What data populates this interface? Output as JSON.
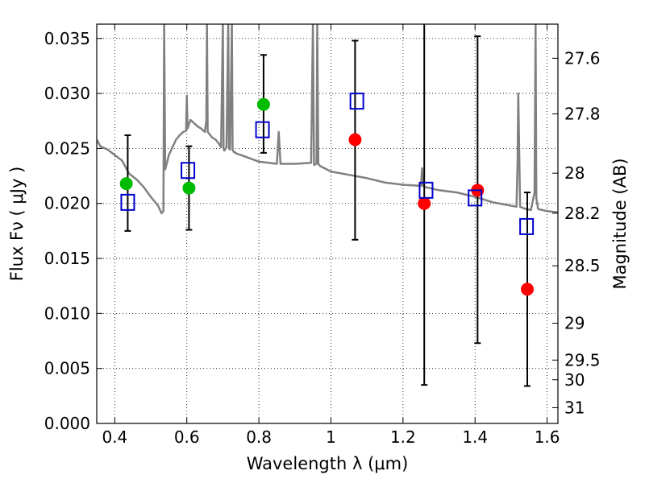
{
  "chart_data": {
    "type": "scatter",
    "title": "",
    "xlabel": "Wavelength  λ (μm)",
    "ylabel": "Flux  Fν  ( μJy )",
    "y2label": "Magnitude (AB)",
    "xlim": [
      0.35,
      1.63
    ],
    "ylim": [
      0.0,
      0.0363
    ],
    "grid": true,
    "x_ticks": [
      0.4,
      0.6,
      0.8,
      1.0,
      1.2,
      1.4,
      1.6
    ],
    "x_tick_labels": [
      "0.4",
      "0.6",
      "0.8",
      "1",
      "1.2",
      "1.4",
      "1.6"
    ],
    "y_ticks": [
      0.0,
      0.005,
      0.01,
      0.015,
      0.02,
      0.025,
      0.03,
      0.035
    ],
    "y_tick_labels": [
      "0.000",
      "0.005",
      "0.010",
      "0.015",
      "0.020",
      "0.025",
      "0.030",
      "0.035"
    ],
    "mag_ticks": [
      {
        "label": "27.6",
        "flux": 0.0332
      },
      {
        "label": "27.8",
        "flux": 0.02814
      },
      {
        "label": "28",
        "flux": 0.02275
      },
      {
        "label": "28.2",
        "flux": 0.01911
      },
      {
        "label": "28.5",
        "flux": 0.01433
      },
      {
        "label": "29",
        "flux": 0.00911
      },
      {
        "label": "29.5",
        "flux": 0.00576
      },
      {
        "label": "30",
        "flux": 0.00397
      },
      {
        "label": "31",
        "flux": 0.00143
      }
    ],
    "series": [
      {
        "name": "model spectrum",
        "style": "line",
        "color": "#808080",
        "x": [
          0.35,
          0.36,
          0.38,
          0.4,
          0.42,
          0.44,
          0.46,
          0.48,
          0.5,
          0.52,
          0.53,
          0.535,
          0.537,
          0.54,
          0.545,
          0.55,
          0.56,
          0.57,
          0.58,
          0.59,
          0.598,
          0.6,
          0.602,
          0.61,
          0.62,
          0.63,
          0.64,
          0.65,
          0.654,
          0.656,
          0.658,
          0.67,
          0.68,
          0.69,
          0.695,
          0.7,
          0.702,
          0.704,
          0.71,
          0.715,
          0.717,
          0.72,
          0.725,
          0.727,
          0.73,
          0.74,
          0.75,
          0.8,
          0.85,
          0.855,
          0.86,
          0.9,
          0.945,
          0.95,
          0.953,
          0.96,
          0.962,
          0.965,
          0.97,
          1.0,
          1.05,
          1.1,
          1.15,
          1.2,
          1.25,
          1.253,
          1.256,
          1.26,
          1.3,
          1.35,
          1.4,
          1.45,
          1.5,
          1.515,
          1.518,
          1.52,
          1.523,
          1.525,
          1.54,
          1.555,
          1.565,
          1.568,
          1.57,
          1.575,
          1.6,
          1.63
        ],
        "y": [
          0.0258,
          0.0252,
          0.0249,
          0.0244,
          0.0239,
          0.0227,
          0.0222,
          0.0215,
          0.0206,
          0.0198,
          0.0191,
          0.0193,
          0.0363,
          0.0231,
          0.0237,
          0.0244,
          0.0251,
          0.0258,
          0.0262,
          0.0265,
          0.0266,
          0.0298,
          0.0268,
          0.0276,
          0.0273,
          0.027,
          0.0268,
          0.0265,
          0.0275,
          0.0363,
          0.0265,
          0.026,
          0.0258,
          0.0254,
          0.0251,
          0.0363,
          0.025,
          0.0248,
          0.0251,
          0.0363,
          0.025,
          0.0249,
          0.0363,
          0.0249,
          0.0247,
          0.0245,
          0.0244,
          0.0238,
          0.0236,
          0.0265,
          0.0236,
          0.0236,
          0.0237,
          0.0363,
          0.0235,
          0.0236,
          0.0363,
          0.0236,
          0.0234,
          0.0229,
          0.0226,
          0.0223,
          0.0219,
          0.0217,
          0.0216,
          0.0232,
          0.0216,
          0.0215,
          0.0212,
          0.021,
          0.0206,
          0.0201,
          0.0198,
          0.0197,
          0.0238,
          0.03,
          0.0238,
          0.0197,
          0.0195,
          0.0194,
          0.021,
          0.0363,
          0.0205,
          0.0195,
          0.0193,
          0.0192
        ]
      },
      {
        "name": "photometry green",
        "style": "circle",
        "color": "#00bb00",
        "x": [
          0.432,
          0.606,
          0.813
        ],
        "y": [
          0.0218,
          0.0214,
          0.029
        ]
      },
      {
        "name": "photometry red",
        "style": "circle",
        "color": "#ff0000",
        "x": [
          1.067,
          1.259,
          1.407,
          1.545
        ],
        "y": [
          0.0258,
          0.02,
          0.0212,
          0.0122
        ]
      },
      {
        "name": "model photometry",
        "style": "square",
        "color": "#0000cc",
        "x": [
          0.436,
          0.603,
          0.81,
          1.072,
          1.264,
          1.4,
          1.543
        ],
        "y": [
          0.0201,
          0.023,
          0.0267,
          0.0293,
          0.0212,
          0.0205,
          0.0179
        ]
      }
    ],
    "error_bars": [
      {
        "x": 0.436,
        "low": 0.0175,
        "high": 0.0262
      },
      {
        "x": 0.606,
        "low": 0.0176,
        "high": 0.0252
      },
      {
        "x": 0.813,
        "low": 0.0246,
        "high": 0.0335
      },
      {
        "x": 1.067,
        "low": 0.0167,
        "high": 0.0348
      },
      {
        "x": 1.259,
        "low": 0.0035,
        "high": 0.0363
      },
      {
        "x": 1.407,
        "low": 0.0073,
        "high": 0.0352
      },
      {
        "x": 1.545,
        "low": 0.0034,
        "high": 0.021
      }
    ]
  }
}
